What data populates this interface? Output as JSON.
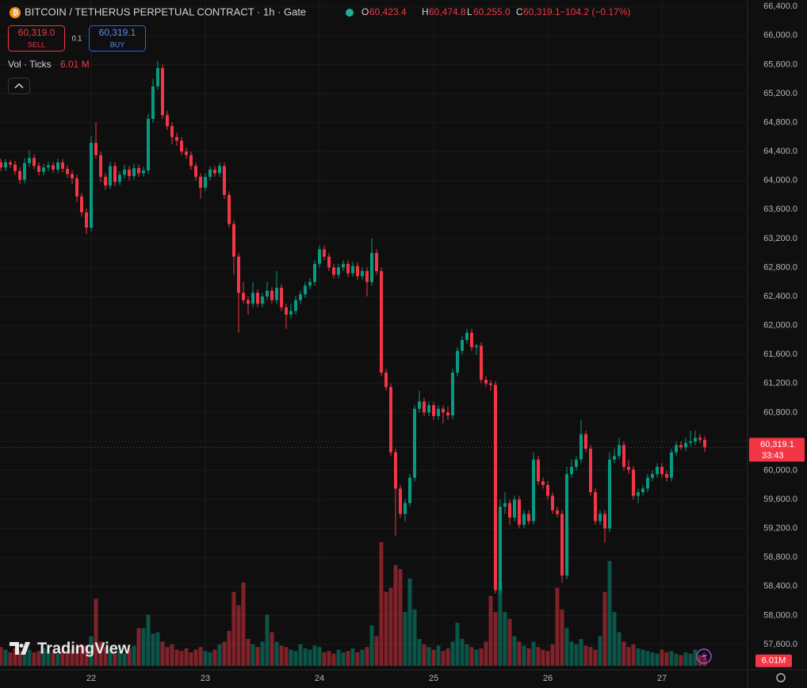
{
  "header": {
    "title": "BITCOIN / TETHERUS PERPETUAL CONTRACT · 1h · Gate",
    "o_label": "O",
    "o": "60,423.4",
    "h_label": "H",
    "h": "60,474.8",
    "l_label": "L",
    "l": "60,255.0",
    "c_label": "C",
    "c": "60,319.1",
    "change": "−104.2 (−0.17%)",
    "sell_price": "60,319.0",
    "sell": "SELL",
    "spread": "0.1",
    "buy_price": "60,319.1",
    "buy": "BUY",
    "volume_title": "Vol · Ticks",
    "volume_value": "6.01 M",
    "price_tag": "60,319.1",
    "countdown": "33:43",
    "volume_tag": "6.01M",
    "watermark": "TradingView"
  },
  "chart_data": {
    "type": "candlestick",
    "up_color": "#089981",
    "down_color": "#f23645",
    "grid": true,
    "ylim": [
      57250,
      66490
    ],
    "yticks": [
      {
        "value": 57600,
        "label": "57,600.0"
      },
      {
        "value": 58000,
        "label": "58,000.0"
      },
      {
        "value": 58400,
        "label": "58,400.0"
      },
      {
        "value": 58800,
        "label": "58,800.0"
      },
      {
        "value": 59200,
        "label": "59,200.0"
      },
      {
        "value": 59600,
        "label": "59,600.0"
      },
      {
        "value": 60000,
        "label": "60,000.0"
      },
      {
        "value": 60400,
        "label": "60,400.0"
      },
      {
        "value": 60800,
        "label": "60,800.0"
      },
      {
        "value": 61200,
        "label": "61,200.0"
      },
      {
        "value": 61600,
        "label": "61,600.0"
      },
      {
        "value": 62000,
        "label": "62,000.0"
      },
      {
        "value": 62400,
        "label": "62,400.0"
      },
      {
        "value": 62800,
        "label": "62,800.0"
      },
      {
        "value": 63200,
        "label": "63,200.0"
      },
      {
        "value": 63600,
        "label": "63,600.0"
      },
      {
        "value": 64000,
        "label": "64,000.0"
      },
      {
        "value": 64400,
        "label": "64,400.0"
      },
      {
        "value": 64800,
        "label": "64,800.0"
      },
      {
        "value": 65200,
        "label": "65,200.0"
      },
      {
        "value": 65600,
        "label": "65,600.0"
      },
      {
        "value": 66000,
        "label": "66,000.0"
      },
      {
        "value": 66400,
        "label": "66,400.0"
      }
    ],
    "xticks": [
      {
        "value": 19,
        "label": "22"
      },
      {
        "value": 43,
        "label": "23"
      },
      {
        "value": 67,
        "label": "24"
      },
      {
        "value": 91,
        "label": "25"
      },
      {
        "value": 115,
        "label": "26"
      },
      {
        "value": 139,
        "label": "27"
      }
    ],
    "ohlc": [
      [
        64250,
        64300,
        64130,
        64180
      ],
      [
        64180,
        64300,
        64130,
        64250
      ],
      [
        64250,
        64290,
        64170,
        64220
      ],
      [
        64220,
        64270,
        64080,
        64130
      ],
      [
        64130,
        64180,
        63950,
        64010
      ],
      [
        64010,
        64310,
        63960,
        64240
      ],
      [
        64240,
        64420,
        64190,
        64310
      ],
      [
        64310,
        64360,
        64150,
        64200
      ],
      [
        64200,
        64250,
        64070,
        64120
      ],
      [
        64120,
        64230,
        64070,
        64180
      ],
      [
        64180,
        64260,
        64130,
        64210
      ],
      [
        64210,
        64260,
        64100,
        64150
      ],
      [
        64150,
        64300,
        64100,
        64250
      ],
      [
        64250,
        64300,
        64110,
        64160
      ],
      [
        64160,
        64210,
        64040,
        64090
      ],
      [
        64090,
        64140,
        63950,
        64030
      ],
      [
        64030,
        64080,
        63700,
        63780
      ],
      [
        63780,
        63830,
        63500,
        63560
      ],
      [
        63560,
        63610,
        63260,
        63350
      ],
      [
        63350,
        64620,
        63300,
        64520
      ],
      [
        64520,
        64800,
        64300,
        64350
      ],
      [
        64350,
        64400,
        63980,
        64050
      ],
      [
        64050,
        64100,
        63870,
        63930
      ],
      [
        63930,
        64260,
        63880,
        64200
      ],
      [
        64200,
        64250,
        63920,
        63980
      ],
      [
        63980,
        64130,
        63930,
        64080
      ],
      [
        64080,
        64220,
        64030,
        64150
      ],
      [
        64150,
        64200,
        64000,
        64060
      ],
      [
        64060,
        64230,
        64010,
        64170
      ],
      [
        64170,
        64220,
        64050,
        64100
      ],
      [
        64100,
        64190,
        64050,
        64140
      ],
      [
        64140,
        64920,
        64090,
        64850
      ],
      [
        64850,
        65400,
        64800,
        65300
      ],
      [
        65300,
        65650,
        65250,
        65550
      ],
      [
        65550,
        65600,
        64850,
        64900
      ],
      [
        64900,
        64960,
        64700,
        64750
      ],
      [
        64750,
        64800,
        64500,
        64600
      ],
      [
        64600,
        64660,
        64480,
        64550
      ],
      [
        64550,
        64600,
        64350,
        64400
      ],
      [
        64400,
        64450,
        64300,
        64350
      ],
      [
        64350,
        64400,
        64150,
        64200
      ],
      [
        64200,
        64250,
        64000,
        64050
      ],
      [
        64050,
        64100,
        63750,
        63900
      ],
      [
        63900,
        64100,
        63850,
        64050
      ],
      [
        64050,
        64200,
        64000,
        64150
      ],
      [
        64150,
        64200,
        64050,
        64100
      ],
      [
        64100,
        64250,
        64050,
        64200
      ],
      [
        64200,
        64250,
        63750,
        63800
      ],
      [
        63800,
        63850,
        63350,
        63400
      ],
      [
        63400,
        63450,
        62700,
        62950
      ],
      [
        62950,
        63000,
        61900,
        62450
      ],
      [
        62450,
        62600,
        62300,
        62350
      ],
      [
        62350,
        62400,
        62150,
        62300
      ],
      [
        62300,
        62600,
        62250,
        62450
      ],
      [
        62450,
        62500,
        62250,
        62300
      ],
      [
        62300,
        62450,
        62250,
        62400
      ],
      [
        62400,
        62600,
        62350,
        62480
      ],
      [
        62480,
        62530,
        62300,
        62350
      ],
      [
        62350,
        62750,
        62300,
        62520
      ],
      [
        62520,
        62570,
        62200,
        62250
      ],
      [
        62250,
        62300,
        61950,
        62150
      ],
      [
        62150,
        62300,
        62100,
        62200
      ],
      [
        62200,
        62400,
        62150,
        62350
      ],
      [
        62350,
        62480,
        62300,
        62430
      ],
      [
        62430,
        62600,
        62380,
        62550
      ],
      [
        62550,
        62650,
        62500,
        62600
      ],
      [
        62600,
        62900,
        62550,
        62850
      ],
      [
        62850,
        63100,
        62800,
        63050
      ],
      [
        63050,
        63100,
        62900,
        62950
      ],
      [
        62950,
        63000,
        62750,
        62800
      ],
      [
        62800,
        62850,
        62650,
        62700
      ],
      [
        62700,
        62850,
        62650,
        62800
      ],
      [
        62800,
        62900,
        62750,
        62850
      ],
      [
        62850,
        62900,
        62670,
        62720
      ],
      [
        62720,
        62880,
        62670,
        62820
      ],
      [
        62820,
        62870,
        62630,
        62680
      ],
      [
        62680,
        62800,
        62630,
        62750
      ],
      [
        62750,
        62800,
        62400,
        62600
      ],
      [
        62600,
        63200,
        62550,
        63000
      ],
      [
        63000,
        63050,
        62700,
        62750
      ],
      [
        62750,
        62800,
        61300,
        61350
      ],
      [
        61350,
        61400,
        61100,
        61150
      ],
      [
        61150,
        61200,
        60200,
        60250
      ],
      [
        60250,
        60300,
        59100,
        59750
      ],
      [
        59750,
        59800,
        59350,
        59400
      ],
      [
        59400,
        59600,
        59300,
        59550
      ],
      [
        59550,
        59950,
        59500,
        59900
      ],
      [
        59900,
        60900,
        59850,
        60850
      ],
      [
        60850,
        61100,
        60800,
        60950
      ],
      [
        60950,
        61000,
        60750,
        60800
      ],
      [
        60800,
        60950,
        60750,
        60900
      ],
      [
        60900,
        60950,
        60700,
        60750
      ],
      [
        60750,
        60900,
        60700,
        60850
      ],
      [
        60850,
        60900,
        60650,
        60800
      ],
      [
        60800,
        60880,
        60700,
        60760
      ],
      [
        60760,
        61400,
        60710,
        61350
      ],
      [
        61350,
        61700,
        61300,
        61650
      ],
      [
        61650,
        61850,
        61600,
        61800
      ],
      [
        61800,
        61950,
        61750,
        61900
      ],
      [
        61900,
        61950,
        61650,
        61700
      ],
      [
        61700,
        61750,
        61600,
        61720
      ],
      [
        61720,
        61770,
        61200,
        61250
      ],
      [
        61250,
        61300,
        61150,
        61200
      ],
      [
        61200,
        61250,
        61100,
        61180
      ],
      [
        61180,
        61230,
        58300,
        58350
      ],
      [
        58350,
        59600,
        58300,
        59500
      ],
      [
        59500,
        59700,
        59400,
        59550
      ],
      [
        59550,
        59600,
        59250,
        59350
      ],
      [
        59350,
        59650,
        59300,
        59600
      ],
      [
        59600,
        59650,
        59200,
        59250
      ],
      [
        59250,
        59450,
        59200,
        59400
      ],
      [
        59400,
        59450,
        59250,
        59300
      ],
      [
        59300,
        60250,
        59250,
        60150
      ],
      [
        60150,
        60200,
        59800,
        59850
      ],
      [
        59850,
        59900,
        59750,
        59800
      ],
      [
        59800,
        59850,
        59600,
        59650
      ],
      [
        59650,
        59700,
        59400,
        59450
      ],
      [
        59450,
        59500,
        59350,
        59400
      ],
      [
        59400,
        59450,
        58450,
        58550
      ],
      [
        58550,
        60050,
        58500,
        59950
      ],
      [
        59950,
        60150,
        59900,
        60050
      ],
      [
        60050,
        60200,
        60000,
        60150
      ],
      [
        60150,
        60700,
        60100,
        60500
      ],
      [
        60500,
        60550,
        60250,
        60300
      ],
      [
        60300,
        60350,
        59650,
        59700
      ],
      [
        59700,
        59750,
        59250,
        59300
      ],
      [
        59300,
        59450,
        59250,
        59400
      ],
      [
        59400,
        59450,
        59000,
        59200
      ],
      [
        59200,
        60250,
        59150,
        60150
      ],
      [
        60150,
        60300,
        60100,
        60200
      ],
      [
        60200,
        60450,
        60150,
        60350
      ],
      [
        60350,
        60400,
        60000,
        60050
      ],
      [
        60050,
        60150,
        59950,
        60010
      ],
      [
        60010,
        60060,
        59600,
        59650
      ],
      [
        59650,
        59750,
        59550,
        59700
      ],
      [
        59700,
        59800,
        59650,
        59750
      ],
      [
        59750,
        59950,
        59700,
        59900
      ],
      [
        59900,
        60000,
        59850,
        59950
      ],
      [
        59950,
        60100,
        59900,
        60050
      ],
      [
        60050,
        60100,
        59900,
        59950
      ],
      [
        59950,
        60000,
        59850,
        59900
      ],
      [
        59900,
        60300,
        59850,
        60250
      ],
      [
        60250,
        60400,
        60200,
        60350
      ],
      [
        60350,
        60400,
        60280,
        60320
      ],
      [
        60320,
        60450,
        60270,
        60380
      ],
      [
        60380,
        60550,
        60330,
        60400
      ],
      [
        60400,
        60550,
        60350,
        60450
      ],
      [
        60450,
        60500,
        60380,
        60423.4
      ],
      [
        60423.4,
        60474.8,
        60255.0,
        60319.1
      ]
    ],
    "volume": [
      14,
      12,
      10,
      13,
      11,
      9,
      12,
      10,
      11,
      13,
      12,
      10,
      9,
      11,
      10,
      12,
      14,
      16,
      15,
      22,
      50,
      18,
      14,
      12,
      10,
      11,
      9,
      13,
      15,
      28,
      28,
      38,
      24,
      25,
      18,
      14,
      16,
      12,
      11,
      13,
      10,
      12,
      14,
      11,
      10,
      12,
      16,
      18,
      26,
      55,
      45,
      62,
      20,
      16,
      14,
      18,
      38,
      25,
      18,
      15,
      14,
      12,
      11,
      16,
      13,
      12,
      15,
      14,
      10,
      11,
      9,
      12,
      10,
      11,
      13,
      10,
      12,
      14,
      30,
      22,
      92,
      55,
      58,
      75,
      72,
      40,
      65,
      42,
      20,
      16,
      14,
      12,
      15,
      11,
      13,
      18,
      32,
      20,
      16,
      14,
      12,
      13,
      18,
      52,
      40,
      62,
      40,
      35,
      22,
      18,
      15,
      13,
      18,
      14,
      12,
      11,
      16,
      58,
      42,
      28,
      18,
      16,
      20,
      15,
      14,
      12,
      22,
      55,
      78,
      40,
      25,
      18,
      14,
      16,
      13,
      12,
      11,
      10,
      9,
      12,
      10,
      11,
      9,
      8,
      10,
      9,
      12,
      8,
      6.01
    ]
  }
}
